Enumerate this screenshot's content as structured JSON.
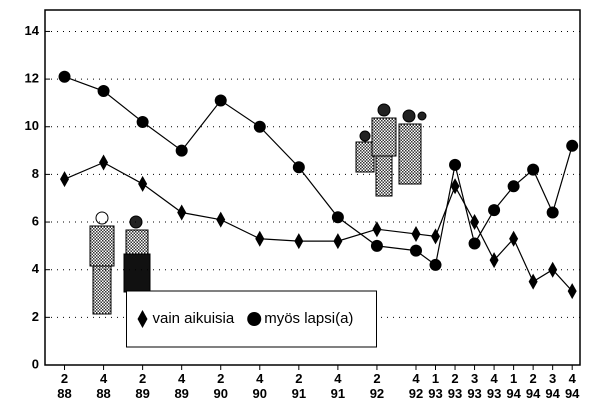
{
  "chart_data": {
    "type": "line",
    "x": [
      88.25,
      88.75,
      89.25,
      89.75,
      90.25,
      90.75,
      91.25,
      91.75,
      92.25,
      92.75,
      93.0,
      93.25,
      93.5,
      93.75,
      94.0,
      94.25,
      94.5,
      94.75
    ],
    "series": [
      {
        "name": "vain aikuisia",
        "color": "#000000",
        "marker": "diamond",
        "values": [
          7.8,
          8.5,
          7.6,
          6.4,
          6.1,
          5.3,
          5.2,
          5.2,
          5.7,
          5.5,
          5.4,
          7.5,
          6.0,
          4.4,
          5.3,
          3.5,
          4.0,
          3.1
        ]
      },
      {
        "name": "myös lapsi(a)",
        "color": "#000000",
        "marker": "circle",
        "values": [
          12.1,
          11.5,
          10.2,
          9.0,
          11.1,
          10.0,
          8.3,
          6.2,
          5.0,
          4.8,
          4.2,
          8.4,
          5.1,
          6.5,
          7.5,
          8.2,
          6.4,
          9.2
        ]
      }
    ],
    "xlim": [
      88,
      94.85
    ],
    "xticks": [
      {
        "value": 88.25,
        "label": "2 88"
      },
      {
        "value": 88.75,
        "label": "4 88"
      },
      {
        "value": 89.25,
        "label": "2 89"
      },
      {
        "value": 89.75,
        "label": "4 89"
      },
      {
        "value": 90.25,
        "label": "2 90"
      },
      {
        "value": 90.75,
        "label": "4 90"
      },
      {
        "value": 91.25,
        "label": "2 91"
      },
      {
        "value": 91.75,
        "label": "4 91"
      },
      {
        "value": 92.25,
        "label": "2 92"
      },
      {
        "value": 92.75,
        "label": "4 92"
      },
      {
        "value": 93.0,
        "label": "1 93"
      },
      {
        "value": 93.25,
        "label": "2 93"
      },
      {
        "value": 93.5,
        "label": "3 93"
      },
      {
        "value": 93.75,
        "label": "4 93"
      },
      {
        "value": 94.0,
        "label": "1 94"
      },
      {
        "value": 94.25,
        "label": "2 94"
      },
      {
        "value": 94.5,
        "label": "3 94"
      },
      {
        "value": 94.75,
        "label": "4 94"
      }
    ],
    "ylim": [
      0,
      14.9
    ],
    "yticks": [
      0,
      2,
      4,
      6,
      8,
      10,
      12,
      14
    ],
    "grid": true,
    "legend": "lower center"
  }
}
